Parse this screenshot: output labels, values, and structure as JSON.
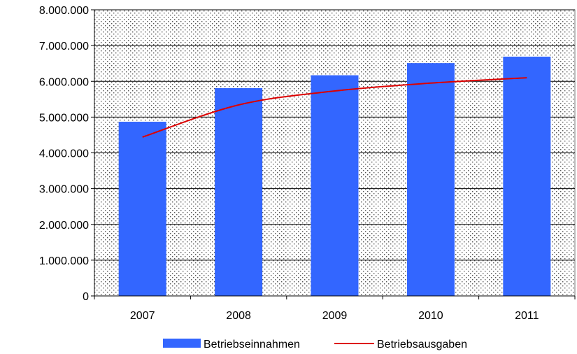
{
  "chart_data": {
    "type": "bar",
    "categories": [
      "2007",
      "2008",
      "2009",
      "2010",
      "2011"
    ],
    "series": [
      {
        "name": "Betriebseinnahmen",
        "type": "bar",
        "color": "#3366ff",
        "values": [
          4870000,
          5810000,
          6170000,
          6510000,
          6690000
        ]
      },
      {
        "name": "Betriebsausgaben",
        "type": "line",
        "color": "#dd0000",
        "values": [
          4440000,
          5340000,
          5730000,
          5950000,
          6100000
        ]
      }
    ],
    "y_tick_labels": [
      "0",
      "1.000.000",
      "2.000.000",
      "3.000.000",
      "4.000.000",
      "5.000.000",
      "6.000.000",
      "7.000.000",
      "8.000.000"
    ],
    "ylim": [
      0,
      8000000
    ],
    "grid": true,
    "plot_background": "dotted",
    "legend_position": "bottom"
  }
}
